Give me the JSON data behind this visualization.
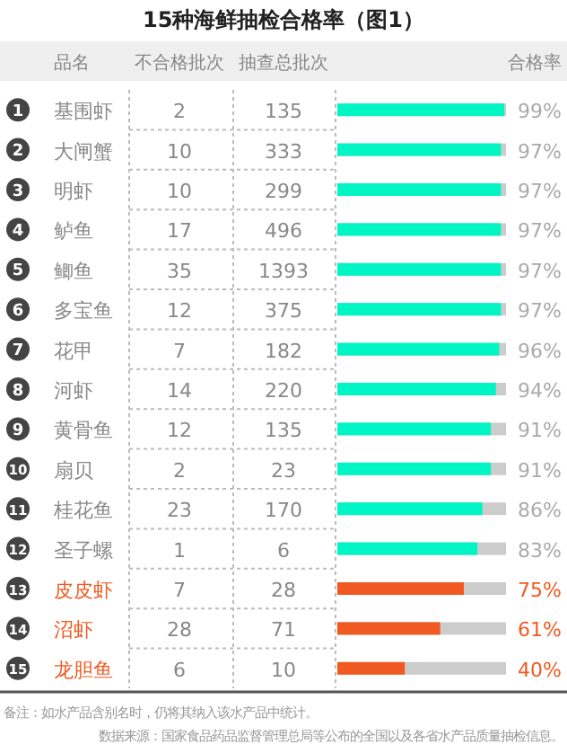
{
  "chart_data": [
    {
      "type": "heatmap",
      "title": "15种海鲜抽检合格率（图1）",
      "ylabel": "品名",
      "grid": true,
      "data_labels": true,
      "categories": [
        "不合格批次",
        "抽查总批次"
      ],
      "y_categories": [
        "基围虾",
        "大闸蟹",
        "明虾",
        "鲈鱼",
        "鲫鱼",
        "多宝鱼",
        "花甲",
        "河虾",
        "黄骨鱼",
        "扇贝",
        "桂花鱼",
        "圣子螺",
        "皮皮虾",
        "沼虾",
        "龙胆鱼"
      ],
      "y2_categories": [
        "1",
        "2",
        "3",
        "4",
        "5",
        "6",
        "7",
        "8",
        "9",
        "10",
        "11",
        "12",
        "13",
        "14",
        "15"
      ],
      "cells": [
        [
          2,
          135
        ],
        [
          10,
          333
        ],
        [
          10,
          299
        ],
        [
          17,
          496
        ],
        [
          35,
          1393
        ],
        [
          12,
          375
        ],
        [
          7,
          182
        ],
        [
          14,
          220
        ],
        [
          12,
          135
        ],
        [
          2,
          23
        ],
        [
          23,
          170
        ],
        [
          1,
          6
        ],
        [
          7,
          28
        ],
        [
          28,
          71
        ],
        [
          6,
          10
        ]
      ]
    },
    {
      "type": "bar",
      "orientation": "horizontal",
      "xlabel": "合格率",
      "categories": [
        null,
        null,
        null,
        null,
        null,
        null,
        null,
        null,
        null,
        null,
        null,
        null,
        null,
        null,
        null
      ],
      "xlim": [
        0,
        100
      ],
      "values": [
        99,
        97,
        97,
        97,
        97,
        97,
        96,
        94,
        91,
        91,
        86,
        83,
        75,
        61,
        40
      ],
      "value_labels": [
        "99%",
        "97%",
        "97%",
        "97%",
        "97%",
        "97%",
        "96%",
        "94%",
        "91%",
        "91%",
        "86%",
        "83%",
        "75%",
        "61%",
        "40%"
      ],
      "colors": [
        "#00f5c4",
        "#00f5c4",
        "#00f5c4",
        "#00f5c4",
        "#00f5c4",
        "#00f5c4",
        "#00f5c4",
        "#00f5c4",
        "#00f5c4",
        "#00f5c4",
        "#00f5c4",
        "#00f5c4",
        "#f05a22",
        "#f05a22",
        "#f05a22"
      ],
      "annotations": [
        "备注：如水产品含别名时，仍将其纳入该水产品中统计。",
        "数据来源：国家食品药品监督管理总局等公布的全国以及各省水产品质量抽检信息。"
      ]
    }
  ]
}
